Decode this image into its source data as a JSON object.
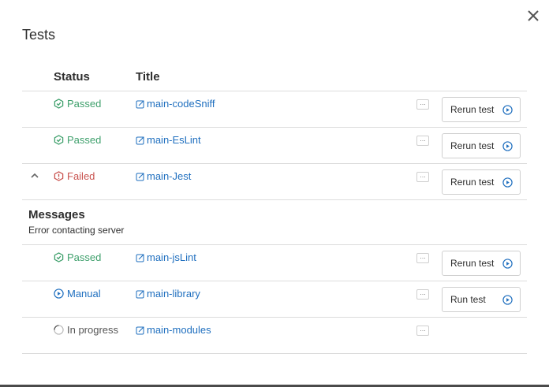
{
  "dialog": {
    "title": "Tests",
    "close_icon": "close-icon"
  },
  "table": {
    "headers": {
      "status": "Status",
      "title": "Title"
    },
    "rows": [
      {
        "status": "Passed",
        "status_kind": "passed",
        "title": "main-codeSniff",
        "action": "Rerun test"
      },
      {
        "status": "Passed",
        "status_kind": "passed",
        "title": "main-EsLint",
        "action": "Rerun test"
      },
      {
        "status": "Failed",
        "status_kind": "failed",
        "title": "main-Jest",
        "action": "Rerun test",
        "expanded": true
      },
      {
        "status": "Passed",
        "status_kind": "passed",
        "title": "main-jsLint",
        "action": "Rerun test"
      },
      {
        "status": "Manual",
        "status_kind": "manual",
        "title": "main-library",
        "action": "Run test"
      },
      {
        "status": "In progress",
        "status_kind": "progress",
        "title": "main-modules"
      }
    ],
    "messages": {
      "title": "Messages",
      "body": "Error contacting server"
    }
  },
  "colors": {
    "passed": "#3fa06c",
    "failed": "#c9534f",
    "manual": "#1f6fbf",
    "progress": "#555555",
    "link": "#1f6fbf"
  }
}
